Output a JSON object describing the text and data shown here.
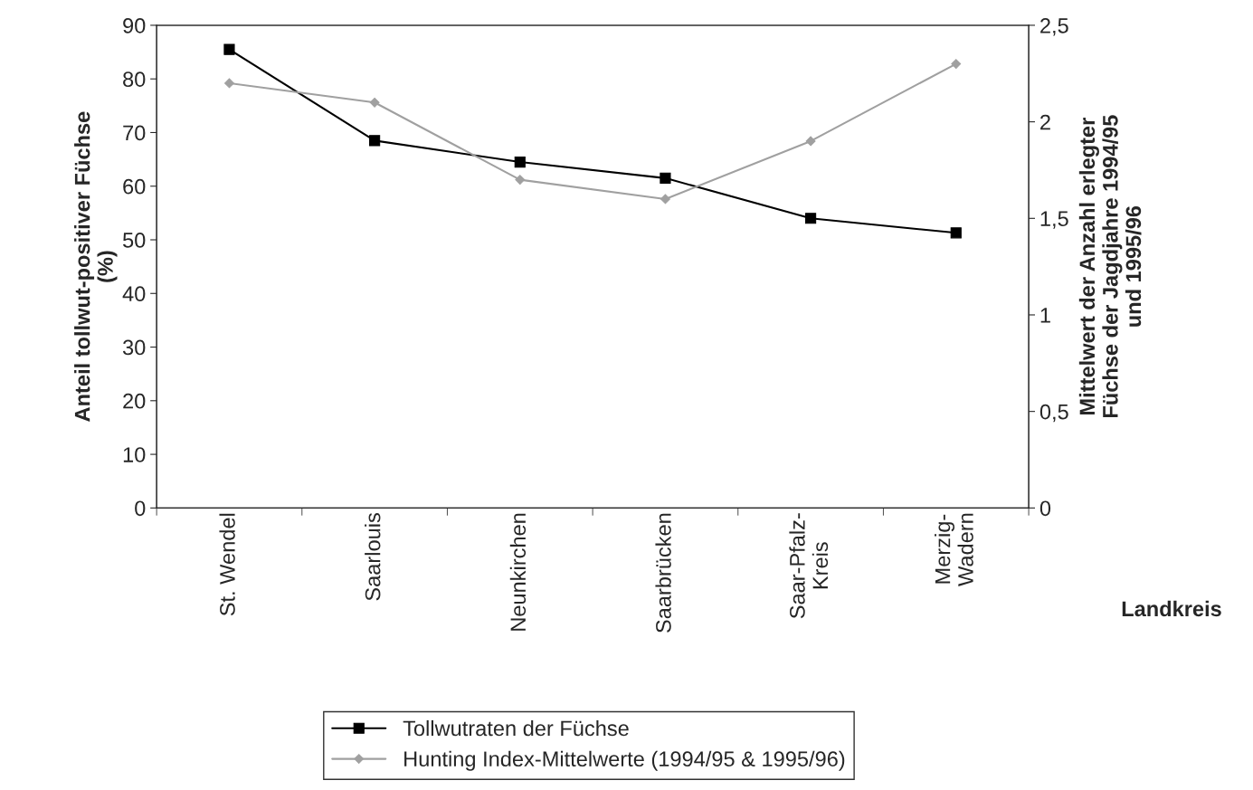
{
  "chart_data": {
    "type": "line",
    "categories": [
      "St. Wendel",
      "Saarlouis",
      "Neunkirchen",
      "Saarbrücken",
      "Saar-Pfalz-\nKreis",
      "Merzig-\nWadern"
    ],
    "xlabel": "Landkreis",
    "ylabel": "Anteil tollwut-positiver Füchse\n(%)",
    "y2label": "Mittelwert der Anzahl erlegter\nFüchse der Jagdjahre 1994/95\nund 1995/96",
    "ylim": [
      0,
      90
    ],
    "yticks": [
      0,
      10,
      20,
      30,
      40,
      50,
      60,
      70,
      80,
      90
    ],
    "y2lim": [
      0,
      2.5
    ],
    "y2ticks": [
      0,
      {
        "value": 0.5,
        "label": "0,5"
      },
      1,
      {
        "value": 1.5,
        "label": "1,5"
      },
      2,
      {
        "value": 2.5,
        "label": "2,5"
      }
    ],
    "grid": false,
    "legend": "bottom",
    "series": [
      {
        "name": "Tollwutraten der Füchse",
        "color": "#000000",
        "marker": "square",
        "values": [
          85.5,
          68.5,
          64.5,
          61.5,
          54,
          51.3
        ]
      },
      {
        "name": "Hunting Index-Mittelwerte (1994/95 & 1995/96)",
        "color": "#a0a0a0",
        "marker": "diamond",
        "axis": "y2",
        "values": [
          2.2,
          2.1,
          1.7,
          1.6,
          1.9,
          2.3
        ]
      }
    ]
  }
}
